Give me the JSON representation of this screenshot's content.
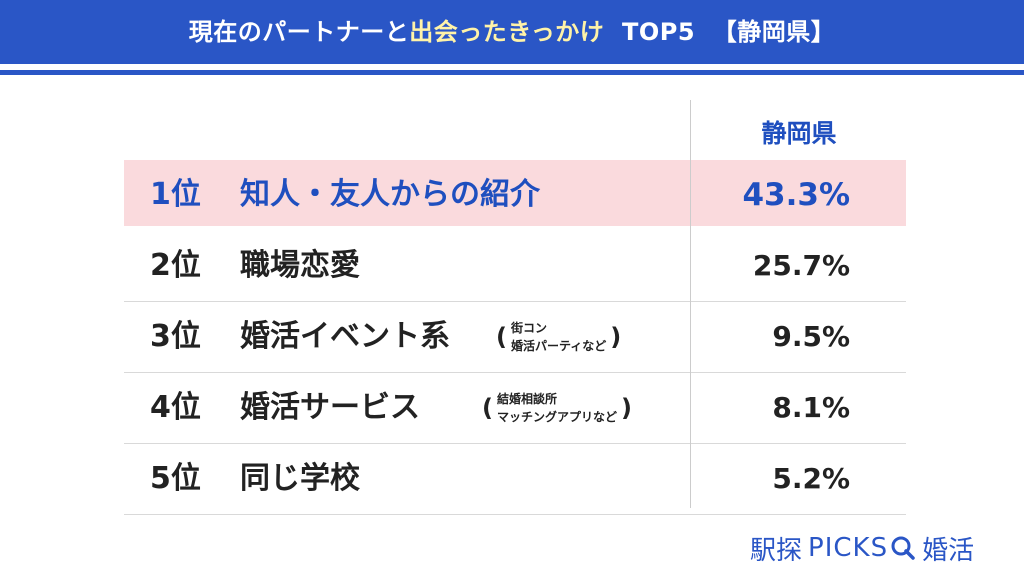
{
  "title": {
    "part1": "現在のパートナーと",
    "part2": "出会ったきっかけ",
    "part3": "TOP5",
    "part4": "【静岡県】"
  },
  "column_header": "静岡県",
  "rows": [
    {
      "rank": "1位",
      "label": "知人・友人からの紹介",
      "note": [],
      "value": "43.3%"
    },
    {
      "rank": "2位",
      "label": "職場恋愛",
      "note": [],
      "value": "25.7%"
    },
    {
      "rank": "3位",
      "label": "婚活イベント系",
      "note": [
        "街コン",
        "婚活パーティなど"
      ],
      "value": "9.5%"
    },
    {
      "rank": "4位",
      "label": "婚活サービス",
      "note": [
        "結婚相談所",
        "マッチングアプリなど"
      ],
      "value": "8.1%"
    },
    {
      "rank": "5位",
      "label": "同じ学校",
      "note": [],
      "value": "5.2%"
    }
  ],
  "logo": {
    "left": "駅探",
    "middle": "PICKS",
    "right": "婚活",
    "icon": "magnifier-icon"
  },
  "colors": {
    "brand_blue": "#2a56c6",
    "highlight_row": "#fadadd",
    "title_highlight": "#fff3a8"
  },
  "chart_data": {
    "type": "table",
    "title": "現在のパートナーと出会ったきっかけ TOP5 【静岡県】",
    "columns": [
      "静岡県"
    ],
    "categories": [
      "知人・友人からの紹介",
      "職場恋愛",
      "婚活イベント系",
      "婚活サービス",
      "同じ学校"
    ],
    "values": [
      43.3,
      25.7,
      9.5,
      8.1,
      5.2
    ],
    "unit": "%"
  }
}
